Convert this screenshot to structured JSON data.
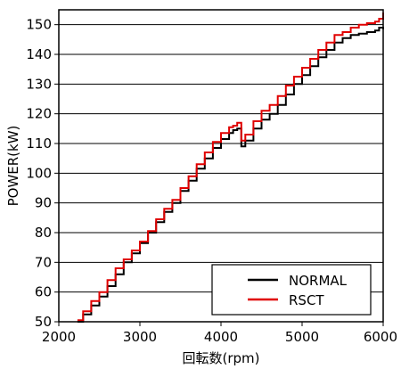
{
  "chart_data": {
    "type": "line",
    "title": "",
    "xlabel": "回転数(rpm)",
    "ylabel": "POWER(kW)",
    "xlim": [
      2000,
      6000
    ],
    "ylim": [
      50,
      155
    ],
    "xticks": [
      "2000",
      "3000",
      "4000",
      "5000",
      "6000"
    ],
    "yticks": [
      "50",
      "60",
      "70",
      "80",
      "90",
      "100",
      "110",
      "120",
      "130",
      "140",
      "150"
    ],
    "grid": "horizontal",
    "legend_position": "bottom-right",
    "series": [
      {
        "name": "NORMAL",
        "color": "#000000",
        "x": [
          2230,
          2300,
          2400,
          2500,
          2600,
          2700,
          2800,
          2900,
          3000,
          3100,
          3200,
          3300,
          3400,
          3500,
          3600,
          3700,
          3800,
          3900,
          4000,
          4100,
          4150,
          4200,
          4250,
          4300,
          4400,
          4500,
          4600,
          4700,
          4800,
          4900,
          5000,
          5100,
          5200,
          5300,
          5400,
          5500,
          5600,
          5700,
          5800,
          5900,
          5950,
          6000
        ],
        "y": [
          50,
          52.5,
          55.5,
          58.5,
          62,
          66,
          70,
          73,
          76.5,
          80,
          83.5,
          87,
          90,
          94,
          97.5,
          101.5,
          105,
          108.5,
          111.5,
          113.5,
          114.5,
          115,
          109,
          111,
          115,
          118,
          120,
          123,
          126.5,
          130,
          133,
          136,
          139,
          141.5,
          144,
          145.5,
          146.5,
          147,
          147.5,
          148,
          149,
          148.5
        ]
      },
      {
        "name": "RSCT",
        "color": "#e00000",
        "x": [
          2230,
          2300,
          2400,
          2500,
          2600,
          2700,
          2800,
          2900,
          3000,
          3100,
          3200,
          3300,
          3400,
          3500,
          3600,
          3700,
          3800,
          3900,
          4000,
          4100,
          4150,
          4200,
          4250,
          4300,
          4400,
          4500,
          4600,
          4700,
          4800,
          4900,
          5000,
          5100,
          5200,
          5300,
          5400,
          5500,
          5600,
          5700,
          5800,
          5900,
          5950,
          6000
        ],
        "y": [
          50.5,
          53.5,
          57,
          60,
          64,
          68,
          71,
          74,
          77,
          80.5,
          84.5,
          88,
          91,
          95,
          99,
          103,
          107,
          110.5,
          113.5,
          115.5,
          116,
          117,
          111,
          113,
          117.5,
          121,
          123,
          126,
          129.5,
          132.5,
          135.5,
          138.5,
          141.5,
          144,
          146.5,
          147.5,
          149,
          150,
          150.5,
          151,
          152,
          154
        ]
      }
    ]
  }
}
